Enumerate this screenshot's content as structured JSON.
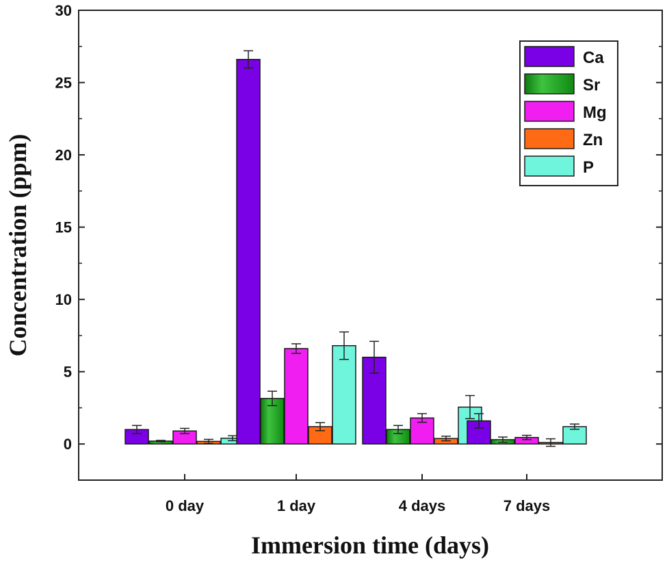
{
  "chart_data": {
    "type": "bar",
    "xlabel": "Immersion time (days)",
    "ylabel": "Concentration (ppm)",
    "ylim": [
      -2.5,
      30
    ],
    "yticks": [
      0,
      5,
      10,
      15,
      20,
      25,
      30
    ],
    "categories": [
      "0 day",
      "1 day",
      "4 days",
      "7 days"
    ],
    "series": [
      {
        "name": "Ca",
        "color": "#7a00e6",
        "values": [
          1.0,
          26.6,
          6.0,
          1.6
        ],
        "errors": [
          0.28,
          0.6,
          1.1,
          0.5
        ]
      },
      {
        "name": "Sr",
        "color": "#1a9a1a",
        "values": [
          0.2,
          3.15,
          1.0,
          0.3
        ],
        "errors": [
          0.05,
          0.5,
          0.28,
          0.18
        ]
      },
      {
        "name": "Mg",
        "color": "#f01ef0",
        "values": [
          0.9,
          6.6,
          1.8,
          0.45
        ],
        "errors": [
          0.18,
          0.33,
          0.3,
          0.15
        ]
      },
      {
        "name": "Zn",
        "color": "#ff6a14",
        "values": [
          0.18,
          1.2,
          0.38,
          0.1
        ],
        "errors": [
          0.14,
          0.28,
          0.16,
          0.26
        ]
      },
      {
        "name": "P",
        "color": "#6ff5dc",
        "values": [
          0.4,
          6.8,
          2.55,
          1.2
        ],
        "errors": [
          0.17,
          0.95,
          0.8,
          0.18
        ]
      }
    ],
    "legend_position": "top-right",
    "grid": false
  }
}
